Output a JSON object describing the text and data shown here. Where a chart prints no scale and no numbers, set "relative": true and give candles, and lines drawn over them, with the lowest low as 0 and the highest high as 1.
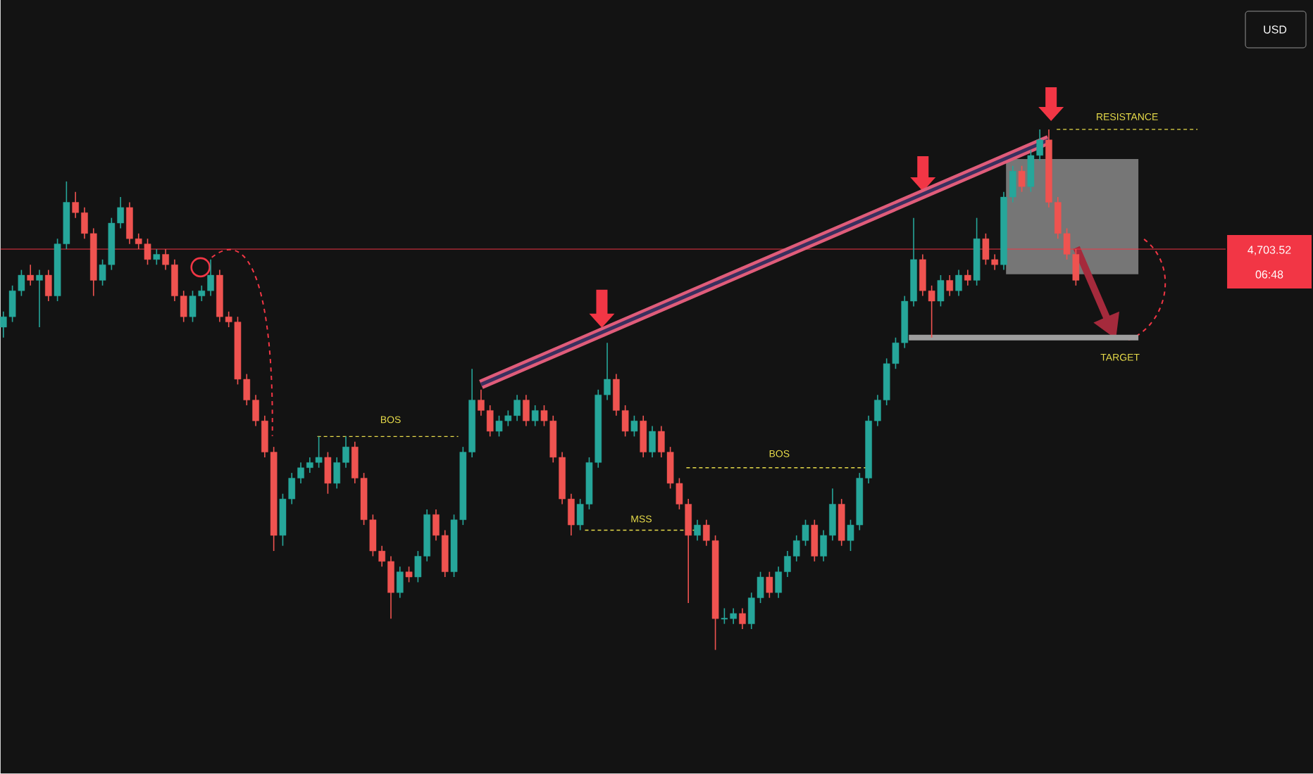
{
  "chart_data": {
    "type": "candlestick",
    "relative": true,
    "categories": [
      null,
      null,
      null,
      null,
      null,
      null,
      null,
      null,
      null,
      null,
      null,
      null,
      null,
      null,
      null,
      null,
      null,
      null,
      null,
      null,
      null,
      null,
      null,
      null,
      null,
      null,
      null,
      null,
      null,
      null,
      null,
      null,
      null,
      null,
      null,
      null,
      null,
      null,
      null,
      null,
      null,
      null,
      null,
      null,
      null,
      null,
      null,
      null,
      null,
      null,
      null,
      null,
      null,
      null,
      null,
      null,
      null,
      null,
      null,
      null,
      null,
      null,
      null,
      null,
      null,
      null,
      null,
      null,
      null,
      null,
      null,
      null,
      null,
      null,
      null,
      null,
      null,
      null,
      null,
      null,
      null,
      null,
      null,
      null,
      null,
      null,
      null,
      null,
      null,
      null,
      null,
      null,
      null,
      null,
      null,
      null,
      null,
      null,
      null,
      null,
      null,
      null,
      null,
      null,
      null,
      null,
      null,
      null,
      null,
      null,
      null,
      null,
      null,
      null,
      null,
      null,
      null,
      null,
      null,
      null
    ],
    "ohlc": [
      [
        0.62,
        0.65,
        0.6,
        0.64
      ],
      [
        0.64,
        0.7,
        0.63,
        0.69
      ],
      [
        0.69,
        0.73,
        0.68,
        0.72
      ],
      [
        0.72,
        0.74,
        0.7,
        0.71
      ],
      [
        0.71,
        0.73,
        0.62,
        0.72
      ],
      [
        0.72,
        0.73,
        0.67,
        0.68
      ],
      [
        0.68,
        0.79,
        0.67,
        0.78
      ],
      [
        0.78,
        0.9,
        0.77,
        0.86
      ],
      [
        0.86,
        0.88,
        0.83,
        0.84
      ],
      [
        0.84,
        0.85,
        0.79,
        0.8
      ],
      [
        0.8,
        0.81,
        0.68,
        0.71
      ],
      [
        0.71,
        0.75,
        0.7,
        0.74
      ],
      [
        0.74,
        0.83,
        0.73,
        0.82
      ],
      [
        0.82,
        0.87,
        0.81,
        0.85
      ],
      [
        0.85,
        0.86,
        0.78,
        0.79
      ],
      [
        0.79,
        0.8,
        0.77,
        0.78
      ],
      [
        0.78,
        0.79,
        0.74,
        0.75
      ],
      [
        0.75,
        0.77,
        0.74,
        0.76
      ],
      [
        0.76,
        0.77,
        0.73,
        0.74
      ],
      [
        0.74,
        0.75,
        0.67,
        0.68
      ],
      [
        0.68,
        0.69,
        0.63,
        0.64
      ],
      [
        0.64,
        0.69,
        0.63,
        0.68
      ],
      [
        0.68,
        0.7,
        0.67,
        0.69
      ],
      [
        0.69,
        0.75,
        0.68,
        0.72
      ],
      [
        0.72,
        0.73,
        0.63,
        0.64
      ],
      [
        0.64,
        0.65,
        0.62,
        0.63
      ],
      [
        0.63,
        0.64,
        0.51,
        0.52
      ],
      [
        0.52,
        0.53,
        0.47,
        0.48
      ],
      [
        0.48,
        0.49,
        0.43,
        0.44
      ],
      [
        0.44,
        0.45,
        0.37,
        0.38
      ],
      [
        0.38,
        0.39,
        0.19,
        0.22
      ],
      [
        0.22,
        0.3,
        0.2,
        0.29
      ],
      [
        0.29,
        0.34,
        0.28,
        0.33
      ],
      [
        0.33,
        0.36,
        0.32,
        0.35
      ],
      [
        0.35,
        0.37,
        0.34,
        0.36
      ],
      [
        0.36,
        0.41,
        0.35,
        0.37
      ],
      [
        0.37,
        0.38,
        0.3,
        0.32
      ],
      [
        0.32,
        0.37,
        0.31,
        0.36
      ],
      [
        0.36,
        0.41,
        0.35,
        0.39
      ],
      [
        0.39,
        0.4,
        0.32,
        0.33
      ],
      [
        0.33,
        0.34,
        0.24,
        0.25
      ],
      [
        0.25,
        0.26,
        0.18,
        0.19
      ],
      [
        0.19,
        0.2,
        0.16,
        0.17
      ],
      [
        0.17,
        0.18,
        0.06,
        0.11
      ],
      [
        0.11,
        0.16,
        0.1,
        0.15
      ],
      [
        0.15,
        0.16,
        0.13,
        0.14
      ],
      [
        0.14,
        0.19,
        0.13,
        0.18
      ],
      [
        0.18,
        0.27,
        0.17,
        0.26
      ],
      [
        0.26,
        0.27,
        0.21,
        0.22
      ],
      [
        0.22,
        0.23,
        0.14,
        0.15
      ],
      [
        0.15,
        0.26,
        0.14,
        0.25
      ],
      [
        0.25,
        0.39,
        0.24,
        0.38
      ],
      [
        0.38,
        0.54,
        0.37,
        0.48
      ],
      [
        0.48,
        0.5,
        0.45,
        0.46
      ],
      [
        0.46,
        0.47,
        0.41,
        0.42
      ],
      [
        0.42,
        0.45,
        0.41,
        0.44
      ],
      [
        0.44,
        0.46,
        0.43,
        0.45
      ],
      [
        0.45,
        0.49,
        0.44,
        0.48
      ],
      [
        0.48,
        0.49,
        0.43,
        0.44
      ],
      [
        0.44,
        0.47,
        0.43,
        0.46
      ],
      [
        0.46,
        0.47,
        0.43,
        0.44
      ],
      [
        0.44,
        0.45,
        0.36,
        0.37
      ],
      [
        0.37,
        0.38,
        0.28,
        0.29
      ],
      [
        0.29,
        0.3,
        0.22,
        0.24
      ],
      [
        0.24,
        0.29,
        0.23,
        0.28
      ],
      [
        0.28,
        0.37,
        0.27,
        0.36
      ],
      [
        0.36,
        0.5,
        0.35,
        0.49
      ],
      [
        0.49,
        0.59,
        0.48,
        0.52
      ],
      [
        0.52,
        0.53,
        0.45,
        0.46
      ],
      [
        0.46,
        0.47,
        0.41,
        0.42
      ],
      [
        0.42,
        0.45,
        0.41,
        0.44
      ],
      [
        0.44,
        0.45,
        0.37,
        0.38
      ],
      [
        0.38,
        0.43,
        0.37,
        0.42
      ],
      [
        0.42,
        0.43,
        0.37,
        0.38
      ],
      [
        0.38,
        0.39,
        0.31,
        0.32
      ],
      [
        0.32,
        0.33,
        0.27,
        0.28
      ],
      [
        0.28,
        0.29,
        0.09,
        0.22
      ],
      [
        0.22,
        0.25,
        0.21,
        0.24
      ],
      [
        0.24,
        0.25,
        0.2,
        0.21
      ],
      [
        0.21,
        0.22,
        0.0,
        0.06
      ],
      [
        0.06,
        0.08,
        0.05,
        0.06
      ],
      [
        0.06,
        0.08,
        0.05,
        0.07
      ],
      [
        0.07,
        0.08,
        0.04,
        0.05
      ],
      [
        0.05,
        0.11,
        0.04,
        0.1
      ],
      [
        0.1,
        0.15,
        0.09,
        0.14
      ],
      [
        0.14,
        0.15,
        0.1,
        0.11
      ],
      [
        0.11,
        0.16,
        0.1,
        0.15
      ],
      [
        0.15,
        0.19,
        0.14,
        0.18
      ],
      [
        0.18,
        0.22,
        0.17,
        0.21
      ],
      [
        0.21,
        0.25,
        0.2,
        0.24
      ],
      [
        0.24,
        0.25,
        0.17,
        0.18
      ],
      [
        0.18,
        0.23,
        0.17,
        0.22
      ],
      [
        0.22,
        0.31,
        0.21,
        0.28
      ],
      [
        0.28,
        0.29,
        0.2,
        0.21
      ],
      [
        0.21,
        0.25,
        0.19,
        0.24
      ],
      [
        0.24,
        0.34,
        0.23,
        0.33
      ],
      [
        0.33,
        0.45,
        0.32,
        0.44
      ],
      [
        0.44,
        0.49,
        0.43,
        0.48
      ],
      [
        0.48,
        0.56,
        0.47,
        0.55
      ],
      [
        0.55,
        0.6,
        0.54,
        0.59
      ],
      [
        0.59,
        0.68,
        0.58,
        0.67
      ],
      [
        0.67,
        0.83,
        0.66,
        0.75
      ],
      [
        0.75,
        0.76,
        0.68,
        0.69
      ],
      [
        0.69,
        0.7,
        0.6,
        0.67
      ],
      [
        0.67,
        0.72,
        0.66,
        0.71
      ],
      [
        0.71,
        0.72,
        0.68,
        0.69
      ],
      [
        0.69,
        0.73,
        0.68,
        0.72
      ],
      [
        0.72,
        0.73,
        0.7,
        0.71
      ],
      [
        0.71,
        0.83,
        0.7,
        0.79
      ],
      [
        0.79,
        0.8,
        0.74,
        0.75
      ],
      [
        0.75,
        0.76,
        0.73,
        0.74
      ],
      [
        0.74,
        0.88,
        0.73,
        0.87
      ],
      [
        0.87,
        0.93,
        0.86,
        0.92
      ],
      [
        0.92,
        0.93,
        0.88,
        0.89
      ],
      [
        0.89,
        0.96,
        0.88,
        0.95
      ],
      [
        0.95,
        1.0,
        0.94,
        0.98
      ],
      [
        0.98,
        1.0,
        0.85,
        0.86
      ],
      [
        0.86,
        0.87,
        0.79,
        0.8
      ],
      [
        0.8,
        0.81,
        0.75,
        0.76
      ],
      [
        0.76,
        0.77,
        0.7,
        0.71
      ]
    ],
    "series": [
      {
        "type": "line",
        "color": "#e05c7a",
        "values": [
          null,
          null,
          null,
          null,
          null,
          null,
          null,
          null,
          null,
          null,
          null,
          null,
          null,
          null,
          null,
          null,
          null,
          null,
          null,
          null,
          null,
          null,
          null,
          null,
          null,
          null,
          null,
          null,
          null,
          null,
          null,
          null,
          null,
          null,
          null,
          null,
          null,
          null,
          null,
          null,
          null,
          null,
          null,
          null,
          null,
          null,
          null,
          null,
          null,
          null,
          null,
          null,
          null,
          0.51,
          null,
          null,
          null,
          null,
          null,
          null,
          null,
          null,
          null,
          null,
          null,
          null,
          null,
          null,
          null,
          null,
          null,
          null,
          null,
          null,
          null,
          null,
          null,
          null,
          null,
          null,
          null,
          null,
          null,
          null,
          null,
          null,
          null,
          null,
          null,
          null,
          null,
          null,
          null,
          null,
          null,
          null,
          null,
          null,
          null,
          null,
          null,
          null,
          null,
          null,
          null,
          null,
          null,
          null,
          null,
          null,
          null,
          null,
          null,
          null,
          null,
          null,
          0.98,
          null,
          null,
          null
        ]
      }
    ],
    "ref_lines": [
      {
        "axis": "y",
        "value": 0.77,
        "color": "#f23645"
      },
      {
        "axis": "y",
        "value": 0.41,
        "label": "BOS",
        "color": "#e8dc4a",
        "line_style": "dashed"
      },
      {
        "axis": "y",
        "value": 0.23,
        "label": "MSS",
        "color": "#e8dc4a",
        "line_style": "dashed"
      },
      {
        "axis": "y",
        "value": 0.35,
        "label": "BOS",
        "color": "#e8dc4a",
        "line_style": "dashed"
      },
      {
        "axis": "y",
        "value": 1.0,
        "label": "RESISTANCE",
        "color": "#e8dc4a",
        "line_style": "dashed"
      },
      {
        "axis": "y",
        "value": 0.6,
        "label": "TARGET",
        "color": "#9e9e9e"
      }
    ],
    "annotations": [
      "4,703.52",
      "06:48",
      "USD"
    ]
  }
}
